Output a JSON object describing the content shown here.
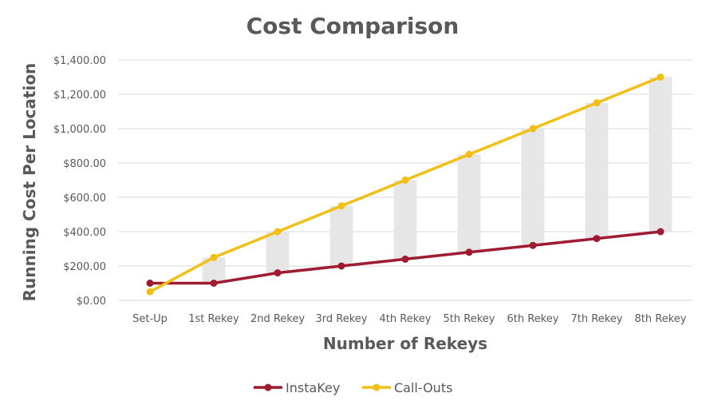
{
  "chart_data": {
    "type": "line",
    "title": "Cost Comparison",
    "xlabel": "Number of Rekeys",
    "ylabel": "Running Cost Per Location",
    "categories": [
      "Set-Up",
      "1st Rekey",
      "2nd Rekey",
      "3rd Rekey",
      "4th Rekey",
      "5th Rekey",
      "6th Rekey",
      "7th Rekey",
      "8th Rekey"
    ],
    "ylim": [
      0,
      1400
    ],
    "yticks": [
      0,
      200,
      400,
      600,
      800,
      1000,
      1200,
      1400
    ],
    "ytick_labels": [
      "$0.00",
      "$200.00",
      "$400.00",
      "$600.00",
      "$800.00",
      "$1,000.00",
      "$1,200.00",
      "$1,400.00"
    ],
    "grid": true,
    "legend_position": "bottom",
    "series": [
      {
        "name": "InstaKey",
        "color": "#9e1b32",
        "values": [
          100,
          100,
          160,
          200,
          240,
          280,
          320,
          360,
          400
        ]
      },
      {
        "name": "Call-Outs",
        "color": "#f2c014",
        "values": [
          50,
          250,
          400,
          550,
          700,
          850,
          1000,
          1150,
          1300
        ]
      }
    ],
    "difference_bars": {
      "color": "#e6e6e6",
      "from_series": "InstaKey",
      "to_series": "Call-Outs"
    }
  }
}
